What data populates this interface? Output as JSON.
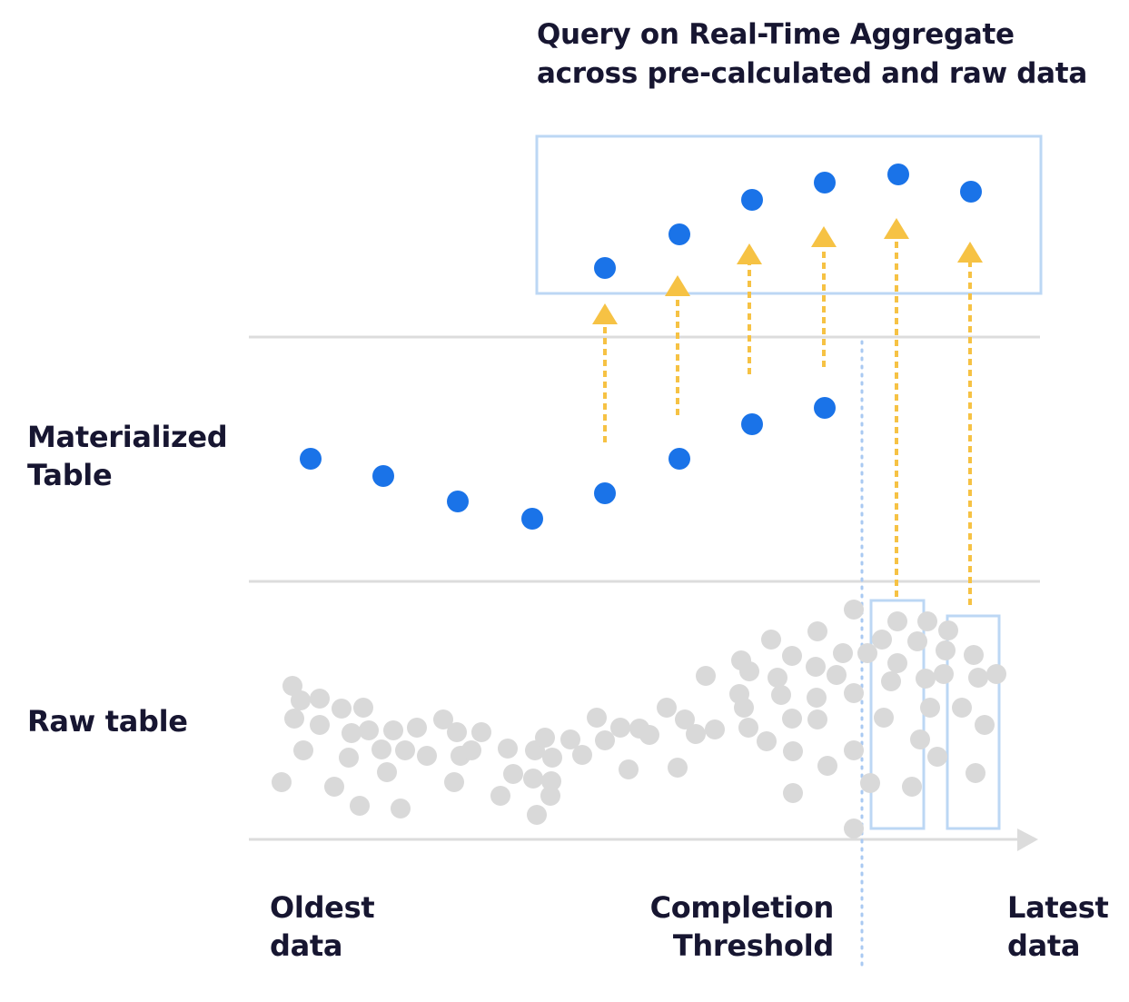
{
  "title": "Query on Real-Time Aggregate\nacross pre-calculated and raw data",
  "rows": {
    "materialized": "Materialized\nTable",
    "raw": "Raw table"
  },
  "axis": {
    "left": "Oldest\ndata",
    "threshold": "Completion\nThreshold",
    "right": "Latest\ndata"
  },
  "colors": {
    "aggregate_point": "#1a73e8",
    "raw_point": "#d9d9d9",
    "arrow": "#f6c244",
    "box": "#bcd7f4",
    "divider": "#dcdcdc",
    "threshold_line": "#a9c9f2"
  }
}
